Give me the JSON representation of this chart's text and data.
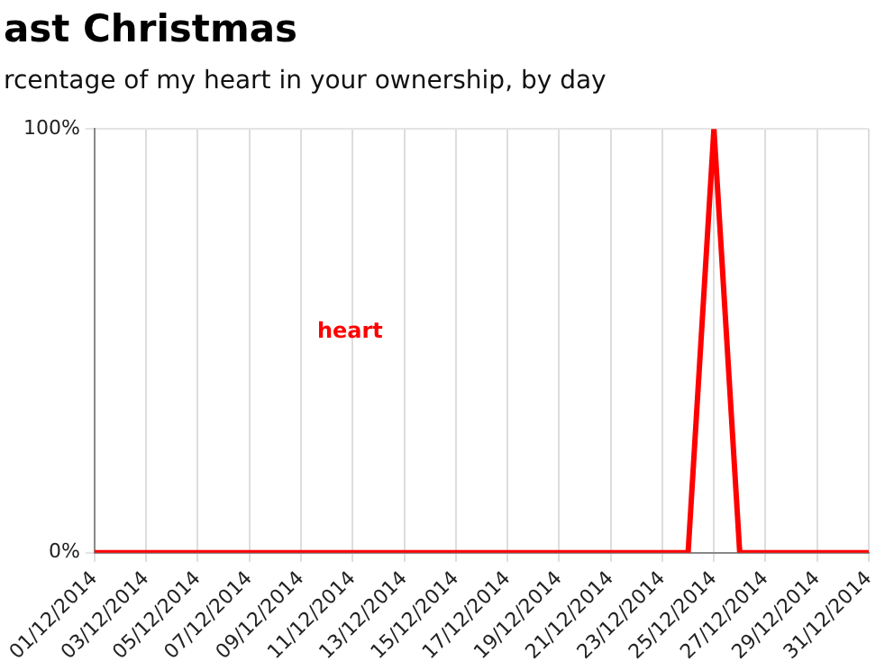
{
  "chart_data": {
    "type": "line",
    "title": "ast Christmas",
    "subtitle": "rcentage of my heart in your ownership, by day",
    "categories": [
      "01/12/2014",
      null,
      "03/12/2014",
      null,
      "05/12/2014",
      null,
      "07/12/2014",
      null,
      "09/12/2014",
      null,
      "11/12/2014",
      null,
      "13/12/2014",
      null,
      "15/12/2014",
      null,
      "17/12/2014",
      null,
      "19/12/2014",
      null,
      "21/12/2014",
      null,
      "23/12/2014",
      null,
      "25/12/2014",
      null,
      "27/12/2014",
      null,
      "29/12/2014",
      null,
      "31/12/2014"
    ],
    "series": [
      {
        "name": "heart",
        "color": "#ff0000",
        "values": [
          0,
          0,
          0,
          0,
          0,
          0,
          0,
          0,
          0,
          0,
          0,
          0,
          0,
          0,
          0,
          0,
          0,
          0,
          0,
          0,
          0,
          0,
          0,
          0,
          100,
          0,
          0,
          0,
          0,
          0,
          0
        ]
      }
    ],
    "ylim": [
      0,
      100
    ],
    "yticks": [
      {
        "value": 0,
        "label": "0%"
      },
      {
        "value": 100,
        "label": "100%"
      }
    ],
    "grid": true,
    "legend": false,
    "marker": "none",
    "line_style": "solid"
  }
}
